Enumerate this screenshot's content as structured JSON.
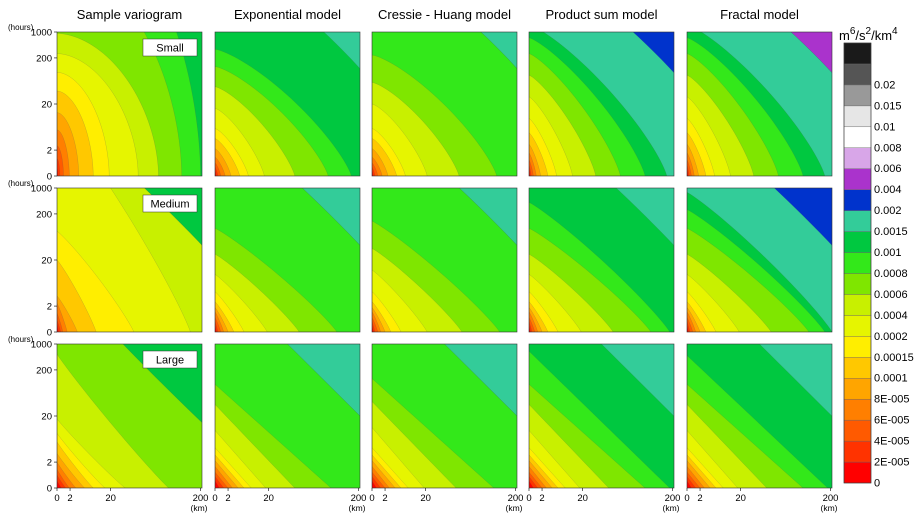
{
  "chart_data": {
    "type": "heatmap",
    "columns": [
      "Sample variogram",
      "Exponential model",
      "Cressie - Huang model",
      "Product sum model",
      "Fractal model"
    ],
    "rows": [
      "Small",
      "Medium",
      "Large"
    ],
    "y_axis_unit": "(hours)",
    "x_axis_unit": "(km)",
    "y_ticks": [
      "0",
      "2",
      "20",
      "200",
      "1000"
    ],
    "x_ticks": [
      "0",
      "2",
      "20",
      "200"
    ],
    "y_scale": "log",
    "x_scale": "log",
    "legend": {
      "unit_base": "m",
      "unit_parts": [
        {
          "text": "6",
          "sup": true
        },
        {
          "text": "/s",
          "sup": false
        },
        {
          "text": "2",
          "sup": true
        },
        {
          "text": "/km",
          "sup": false
        },
        {
          "text": "4",
          "sup": true
        }
      ],
      "levels": [
        "0",
        "2E-005",
        "4E-005",
        "6E-005",
        "8E-005",
        "0.0001",
        "0.00015",
        "0.0002",
        "0.0004",
        "0.0006",
        "0.0008",
        "0.001",
        "0.0015",
        "0.002",
        "0.004",
        "0.006",
        "0.008",
        "0.01",
        "0.015",
        "0.02"
      ],
      "colors": [
        "#ff0000",
        "#ff3300",
        "#ff5a00",
        "#ff7f00",
        "#ffa500",
        "#ffc800",
        "#ffee00",
        "#e6f500",
        "#c8f000",
        "#7fe600",
        "#33e81a",
        "#00c840",
        "#33cc99",
        "#0033cc",
        "#aa33cc",
        "#d8a6e8",
        "#ffffff",
        "#e6e6e6",
        "#999999",
        "#555555",
        "#1a1a1a"
      ]
    },
    "panels": [
      [
        {
          "base": 0,
          "bounds": [
            [
              0.006,
              0.05
            ],
            [
              0.02,
              0.12
            ],
            [
              0.045,
              0.21
            ],
            [
              0.085,
              0.32
            ],
            [
              0.15,
              0.44
            ],
            [
              0.25,
              0.59
            ],
            [
              0.36,
              0.72
            ],
            [
              0.56,
              0.85
            ],
            [
              0.7,
              0.99
            ],
            [
              0.86,
              1.5
            ],
            [
              0.99,
              2.0
            ]
          ],
          "s": 0.55,
          "t": 0.55
        },
        {
          "base": 0,
          "bounds": [
            [
              0.01,
              0.05
            ],
            [
              0.025,
              0.08
            ],
            [
              0.04,
              0.13
            ],
            [
              0.07,
              0.2
            ],
            [
              0.14,
              0.25
            ],
            [
              0.27,
              0.5
            ],
            [
              0.53,
              0.7
            ],
            [
              0.92,
              1.5
            ],
            [
              1.5,
              1.5
            ],
            [
              1.5,
              1.5
            ],
            [
              1.5,
              1.5
            ]
          ],
          "s": 0.9,
          "t": 0.9
        },
        {
          "base": 0,
          "bounds": [
            [
              0.03,
              0.05
            ],
            [
              0.06,
              0.09
            ],
            [
              0.085,
              0.13
            ],
            [
              0.13,
              0.18
            ],
            [
              0.19,
              0.24
            ],
            [
              0.25,
              0.32
            ],
            [
              0.33,
              0.38
            ],
            [
              0.47,
              0.48
            ],
            [
              0.77,
              0.93
            ],
            [
              1.5,
              1.5
            ],
            [
              1.5,
              1.5
            ]
          ],
          "s": 1.05,
          "t": 1.05
        }
      ],
      [
        {
          "base": 0,
          "bounds": [
            [
              0.008,
              0.03
            ],
            [
              0.02,
              0.06
            ],
            [
              0.04,
              0.09
            ],
            [
              0.07,
              0.13
            ],
            [
              0.11,
              0.19
            ],
            [
              0.17,
              0.26
            ],
            [
              0.23,
              0.33
            ],
            [
              0.34,
              0.47
            ],
            [
              0.55,
              0.62
            ],
            [
              0.78,
              0.76
            ],
            [
              0.94,
              0.88
            ],
            [
              1.5,
              1.5
            ]
          ],
          "s": 0.75,
          "t": 0.8
        },
        {
          "base": 0,
          "bounds": [
            [
              0.01,
              0.04
            ],
            [
              0.02,
              0.07
            ],
            [
              0.04,
              0.1
            ],
            [
              0.06,
              0.14
            ],
            [
              0.09,
              0.17
            ],
            [
              0.13,
              0.21
            ],
            [
              0.2,
              0.28
            ],
            [
              0.36,
              0.4
            ],
            [
              0.58,
              0.54
            ],
            [
              0.84,
              0.72
            ],
            [
              1.5,
              1.5
            ],
            [
              1.5,
              1.5
            ]
          ],
          "s": 0.9,
          "t": 0.9
        },
        {
          "base": 0,
          "bounds": [
            [
              0.03,
              0.05
            ],
            [
              0.06,
              0.08
            ],
            [
              0.09,
              0.11
            ],
            [
              0.12,
              0.15
            ],
            [
              0.16,
              0.19
            ],
            [
              0.2,
              0.23
            ],
            [
              0.25,
              0.28
            ],
            [
              0.35,
              0.4
            ],
            [
              0.55,
              0.58
            ],
            [
              0.8,
              0.72
            ],
            [
              1.5,
              1.5
            ],
            [
              1.5,
              1.5
            ]
          ],
          "s": 1.0,
          "t": 1.0
        }
      ],
      [
        {
          "base": 0,
          "bounds": [
            [
              0.008,
              0.03
            ],
            [
              0.02,
              0.06
            ],
            [
              0.04,
              0.09
            ],
            [
              0.07,
              0.13
            ],
            [
              0.11,
              0.19
            ],
            [
              0.17,
              0.26
            ],
            [
              0.23,
              0.33
            ],
            [
              0.38,
              0.5
            ],
            [
              0.6,
              0.65
            ],
            [
              0.86,
              0.84
            ],
            [
              1.5,
              1.5
            ],
            [
              1.5,
              1.5
            ]
          ],
          "s": 0.75,
          "t": 0.8
        },
        {
          "base": 0,
          "bounds": [
            [
              0.01,
              0.04
            ],
            [
              0.02,
              0.07
            ],
            [
              0.04,
              0.1
            ],
            [
              0.06,
              0.14
            ],
            [
              0.09,
              0.17
            ],
            [
              0.13,
              0.21
            ],
            [
              0.2,
              0.28
            ],
            [
              0.38,
              0.43
            ],
            [
              0.62,
              0.58
            ],
            [
              0.88,
              0.77
            ],
            [
              1.5,
              1.5
            ],
            [
              1.5,
              1.5
            ]
          ],
          "s": 0.9,
          "t": 0.9
        },
        {
          "base": 0,
          "bounds": [
            [
              0.03,
              0.05
            ],
            [
              0.06,
              0.08
            ],
            [
              0.09,
              0.11
            ],
            [
              0.12,
              0.15
            ],
            [
              0.16,
              0.19
            ],
            [
              0.2,
              0.23
            ],
            [
              0.25,
              0.28
            ],
            [
              0.36,
              0.42
            ],
            [
              0.58,
              0.6
            ],
            [
              0.84,
              0.76
            ],
            [
              1.5,
              1.5
            ],
            [
              1.5,
              1.5
            ]
          ],
          "s": 1.0,
          "t": 1.0
        }
      ],
      [
        {
          "base": 0,
          "bounds": [
            [
              0.006,
              0.04
            ],
            [
              0.015,
              0.07
            ],
            [
              0.03,
              0.11
            ],
            [
              0.05,
              0.16
            ],
            [
              0.08,
              0.22
            ],
            [
              0.13,
              0.3
            ],
            [
              0.19,
              0.4
            ],
            [
              0.3,
              0.55
            ],
            [
              0.46,
              0.7
            ],
            [
              0.63,
              0.85
            ],
            [
              0.8,
              0.96
            ],
            [
              0.95,
              1.05
            ],
            [
              1.5,
              1.5
            ]
          ],
          "s": 0.8,
          "t": 0.8
        },
        {
          "base": 0,
          "bounds": [
            [
              0.01,
              0.04
            ],
            [
              0.02,
              0.07
            ],
            [
              0.04,
              0.1
            ],
            [
              0.06,
              0.14
            ],
            [
              0.09,
              0.17
            ],
            [
              0.13,
              0.21
            ],
            [
              0.2,
              0.28
            ],
            [
              0.36,
              0.4
            ],
            [
              0.58,
              0.54
            ],
            [
              0.84,
              0.72
            ],
            [
              0.97,
              0.9
            ],
            [
              1.5,
              1.5
            ]
          ],
          "s": 0.9,
          "t": 0.9
        },
        {
          "base": 0,
          "bounds": [
            [
              0.03,
              0.05
            ],
            [
              0.06,
              0.08
            ],
            [
              0.09,
              0.11
            ],
            [
              0.12,
              0.15
            ],
            [
              0.16,
              0.19
            ],
            [
              0.2,
              0.23
            ],
            [
              0.25,
              0.28
            ],
            [
              0.35,
              0.4
            ],
            [
              0.55,
              0.58
            ],
            [
              0.8,
              0.72
            ],
            [
              0.97,
              0.95
            ],
            [
              1.5,
              1.5
            ]
          ],
          "s": 1.0,
          "t": 1.0
        }
      ],
      [
        {
          "base": 0,
          "bounds": [
            [
              0.006,
              0.04
            ],
            [
              0.015,
              0.07
            ],
            [
              0.03,
              0.11
            ],
            [
              0.05,
              0.16
            ],
            [
              0.08,
              0.22
            ],
            [
              0.13,
              0.3
            ],
            [
              0.19,
              0.4
            ],
            [
              0.3,
              0.55
            ],
            [
              0.46,
              0.7
            ],
            [
              0.63,
              0.85
            ],
            [
              0.8,
              0.96
            ],
            [
              0.95,
              1.05
            ],
            [
              1.5,
              1.5
            ],
            [
              1.5,
              1.5
            ]
          ],
          "s": 0.8,
          "t": 0.8
        },
        {
          "base": 0,
          "bounds": [
            [
              0.01,
              0.04
            ],
            [
              0.02,
              0.07
            ],
            [
              0.04,
              0.1
            ],
            [
              0.06,
              0.14
            ],
            [
              0.09,
              0.17
            ],
            [
              0.13,
              0.21
            ],
            [
              0.2,
              0.28
            ],
            [
              0.36,
              0.4
            ],
            [
              0.58,
              0.54
            ],
            [
              0.84,
              0.72
            ],
            [
              0.95,
              0.85
            ],
            [
              1.0,
              0.97
            ],
            [
              1.5,
              1.5
            ]
          ],
          "s": 0.9,
          "t": 0.9
        },
        {
          "base": 0,
          "bounds": [
            [
              0.03,
              0.05
            ],
            [
              0.06,
              0.08
            ],
            [
              0.09,
              0.11
            ],
            [
              0.12,
              0.15
            ],
            [
              0.16,
              0.19
            ],
            [
              0.2,
              0.23
            ],
            [
              0.25,
              0.28
            ],
            [
              0.35,
              0.4
            ],
            [
              0.55,
              0.58
            ],
            [
              0.8,
              0.72
            ],
            [
              0.97,
              0.92
            ],
            [
              1.5,
              1.5
            ]
          ],
          "s": 1.0,
          "t": 1.0
        }
      ]
    ]
  }
}
